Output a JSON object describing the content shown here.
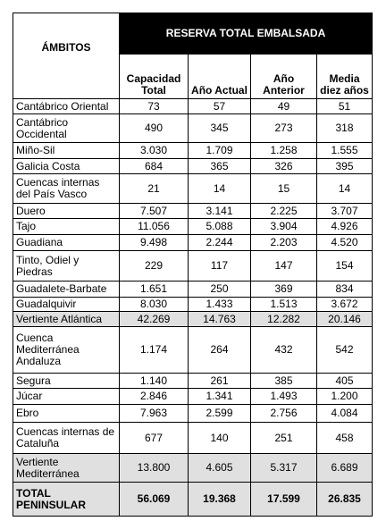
{
  "header": {
    "first_column": "ÁMBITOS",
    "title": "RESERVA TOTAL EMBALSADA",
    "columns": [
      "Capacidad Total",
      "Año Actual",
      "Año Anterior",
      "Media diez años"
    ]
  },
  "sections": [
    {
      "rows": [
        {
          "name": "Cantábrico Oriental",
          "values": [
            "73",
            "57",
            "49",
            "51"
          ]
        },
        {
          "name": "Cantábrico Occidental",
          "values": [
            "490",
            "345",
            "273",
            "318"
          ]
        },
        {
          "name": "Miño-Sil",
          "values": [
            "3.030",
            "1.709",
            "1.258",
            "1.555"
          ]
        },
        {
          "name": "Galicia Costa",
          "values": [
            "684",
            "365",
            "326",
            "395"
          ]
        },
        {
          "name": "Cuencas internas del País Vasco",
          "values": [
            "21",
            "14",
            "15",
            "14"
          ]
        },
        {
          "name": "Duero",
          "values": [
            "7.507",
            "3.141",
            "2.225",
            "3.707"
          ]
        },
        {
          "name": "Tajo",
          "values": [
            "11.056",
            "5.088",
            "3.904",
            "4.926"
          ]
        },
        {
          "name": "Guadiana",
          "values": [
            "9.498",
            "2.244",
            "2.203",
            "4.520"
          ]
        },
        {
          "name": "Tinto, Odiel y Piedras",
          "values": [
            "229",
            "117",
            "147",
            "154"
          ]
        },
        {
          "name": "Guadalete-Barbate",
          "values": [
            "1.651",
            "250",
            "369",
            "834"
          ]
        },
        {
          "name": "Guadalquivir",
          "values": [
            "8.030",
            "1.433",
            "1.513",
            "3.672"
          ]
        }
      ],
      "total": {
        "name": "Vertiente Atlántica",
        "values": [
          "42.269",
          "14.763",
          "12.282",
          "20.146"
        ]
      }
    },
    {
      "rows": [
        {
          "name": "Cuenca Mediterránea Andaluza",
          "values": [
            "1.174",
            "264",
            "432",
            "542"
          ]
        },
        {
          "name": "Segura",
          "values": [
            "1.140",
            "261",
            "385",
            "405"
          ]
        },
        {
          "name": "Júcar",
          "values": [
            "2.846",
            "1.341",
            "1.493",
            "1.200"
          ]
        },
        {
          "name": "Ebro",
          "values": [
            "7.963",
            "2.599",
            "2.756",
            "4.084"
          ]
        },
        {
          "name": "Cuencas internas de Cataluña",
          "values": [
            "677",
            "140",
            "251",
            "458"
          ]
        }
      ],
      "total": {
        "name": "Vertiente Mediterránea",
        "values": [
          "13.800",
          "4.605",
          "5.317",
          "6.689"
        ]
      }
    }
  ],
  "grand_total": {
    "name": "TOTAL PENINSULAR",
    "values": [
      "56.069",
      "19.368",
      "17.599",
      "26.835"
    ]
  }
}
